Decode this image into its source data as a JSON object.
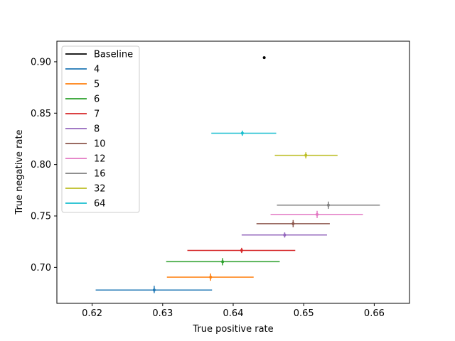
{
  "chart_data": {
    "type": "scatter",
    "title": "",
    "xlabel": "True positive rate",
    "ylabel": "True negative rate",
    "xlim": [
      0.615,
      0.665
    ],
    "ylim": [
      0.665,
      0.92
    ],
    "xticks": [
      "0.62",
      "0.63",
      "0.64",
      "0.65",
      "0.66"
    ],
    "yticks": [
      "0.70",
      "0.75",
      "0.80",
      "0.85",
      "0.90"
    ],
    "grid": false,
    "legend_position": "top-left",
    "error_bars": "horizontal and vertical (x and y uncertainty)",
    "series": [
      {
        "name": "Baseline",
        "color": "#000000",
        "x": 0.6444,
        "y": 0.904,
        "x_err": [
          0.0,
          0.0
        ],
        "y_err": [
          0.0,
          0.0
        ]
      },
      {
        "name": "4",
        "color": "#1f77b4",
        "x": 0.6288,
        "y": 0.678,
        "x_err": [
          0.6205,
          0.637
        ],
        "y_err": [
          0.675,
          0.682
        ]
      },
      {
        "name": "5",
        "color": "#ff7f0e",
        "x": 0.6368,
        "y": 0.6905,
        "x_err": [
          0.6306,
          0.6429
        ],
        "y_err": [
          0.687,
          0.694
        ]
      },
      {
        "name": "6",
        "color": "#2ca02c",
        "x": 0.6385,
        "y": 0.7055,
        "x_err": [
          0.6305,
          0.6466
        ],
        "y_err": [
          0.702,
          0.709
        ]
      },
      {
        "name": "7",
        "color": "#d62728",
        "x": 0.6412,
        "y": 0.7165,
        "x_err": [
          0.6335,
          0.6488
        ],
        "y_err": [
          0.714,
          0.719
        ]
      },
      {
        "name": "8",
        "color": "#9467bd",
        "x": 0.6473,
        "y": 0.7315,
        "x_err": [
          0.6412,
          0.6533
        ],
        "y_err": [
          0.729,
          0.734
        ]
      },
      {
        "name": "10",
        "color": "#8c564b",
        "x": 0.6485,
        "y": 0.7425,
        "x_err": [
          0.6433,
          0.6537
        ],
        "y_err": [
          0.739,
          0.746
        ]
      },
      {
        "name": "12",
        "color": "#e377c2",
        "x": 0.6519,
        "y": 0.7515,
        "x_err": [
          0.6453,
          0.6584
        ],
        "y_err": [
          0.748,
          0.755
        ]
      },
      {
        "name": "16",
        "color": "#7f7f7f",
        "x": 0.6535,
        "y": 0.7605,
        "x_err": [
          0.6462,
          0.6608
        ],
        "y_err": [
          0.757,
          0.764
        ]
      },
      {
        "name": "32",
        "color": "#bcbd22",
        "x": 0.6503,
        "y": 0.809,
        "x_err": [
          0.6459,
          0.6548
        ],
        "y_err": [
          0.806,
          0.812
        ]
      },
      {
        "name": "64",
        "color": "#17becf",
        "x": 0.6413,
        "y": 0.8305,
        "x_err": [
          0.6369,
          0.6461
        ],
        "y_err": [
          0.828,
          0.833
        ]
      }
    ]
  }
}
